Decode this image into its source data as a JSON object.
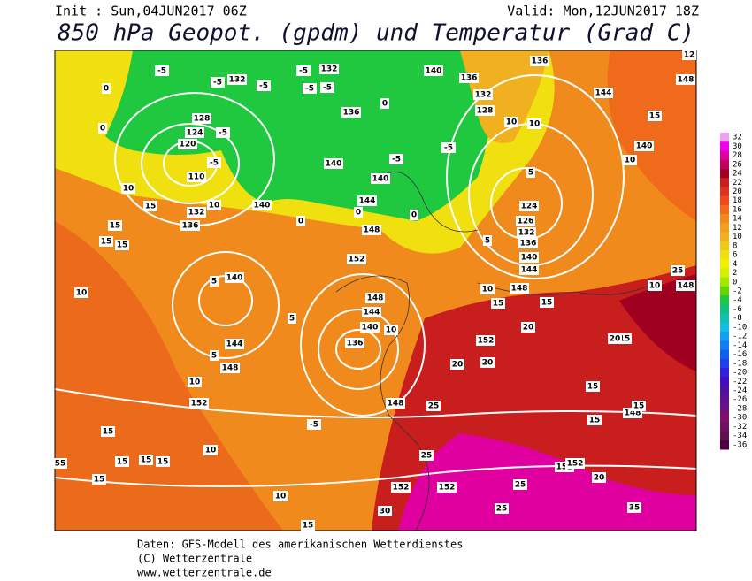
{
  "header": {
    "init": "Init : Sun,04JUN2017 06Z",
    "valid": "Valid: Mon,12JUN2017 18Z",
    "title": "850 hPa Geopot. (gpdm) und Temperatur (Grad C)"
  },
  "footer": [
    "Daten: GFS-Modell des amerikanischen Wetterdienstes",
    "(C) Wetterzentrale",
    "www.wetterzentrale.de"
  ],
  "colorbar": {
    "values": [
      32,
      30,
      28,
      26,
      24,
      22,
      20,
      18,
      16,
      14,
      12,
      10,
      8,
      6,
      4,
      2,
      0,
      -2,
      -4,
      -6,
      -8,
      -10,
      -12,
      -14,
      -16,
      -18,
      -20,
      -22,
      -24,
      -26,
      -28,
      -30,
      -32,
      -34,
      -36
    ],
    "colors": [
      "#f0a0f0",
      "#f000f0",
      "#e000a0",
      "#c00060",
      "#a00020",
      "#c81e1e",
      "#e03020",
      "#f04a1c",
      "#f06a1c",
      "#f08a1c",
      "#f0a020",
      "#f0b020",
      "#f0c818",
      "#f0e010",
      "#f0f000",
      "#d0f000",
      "#a0e800",
      "#60d800",
      "#20c840",
      "#10c080",
      "#10c0b0",
      "#10c0e0",
      "#10a0f0",
      "#1080f0",
      "#1060f0",
      "#2040f0",
      "#3020e0",
      "#4010c0",
      "#5010a0",
      "#601090",
      "#701080",
      "#801070",
      "#701060",
      "#601050",
      "#500040"
    ]
  },
  "contour_labels": [
    "-5",
    "-5",
    "132",
    "-5",
    "-5",
    "132",
    "-5",
    "-5",
    "0",
    "128",
    "124",
    "-5",
    "120",
    "0",
    "-5",
    "110",
    "10",
    "15",
    "132",
    "136",
    "10",
    "15",
    "15",
    "15",
    "140",
    "136",
    "132",
    "128",
    "136",
    "144",
    "15",
    "10",
    "10",
    "140",
    "10",
    "-5",
    "140",
    "140",
    "-5",
    "140",
    "144",
    "0",
    "0",
    "0",
    "0",
    "136",
    "124",
    "126",
    "132",
    "136",
    "5",
    "148",
    "152",
    "140",
    "5",
    "5",
    "10",
    "144",
    "5",
    "148",
    "10",
    "152",
    "148",
    "144",
    "140",
    "136",
    "10",
    "148",
    "25",
    "15",
    "15",
    "10",
    "148",
    "140",
    "144",
    "5",
    "20",
    "152",
    "20",
    "20",
    "15",
    "15",
    "148",
    "15",
    "15",
    "10",
    "15",
    "15",
    "15",
    "15",
    "55",
    "10",
    "25",
    "152",
    "152",
    "25",
    "152",
    "152",
    "20",
    "30",
    "25",
    "35",
    "15",
    "-5",
    "148",
    "10",
    "25",
    "148",
    "12",
    "15",
    "20"
  ]
}
